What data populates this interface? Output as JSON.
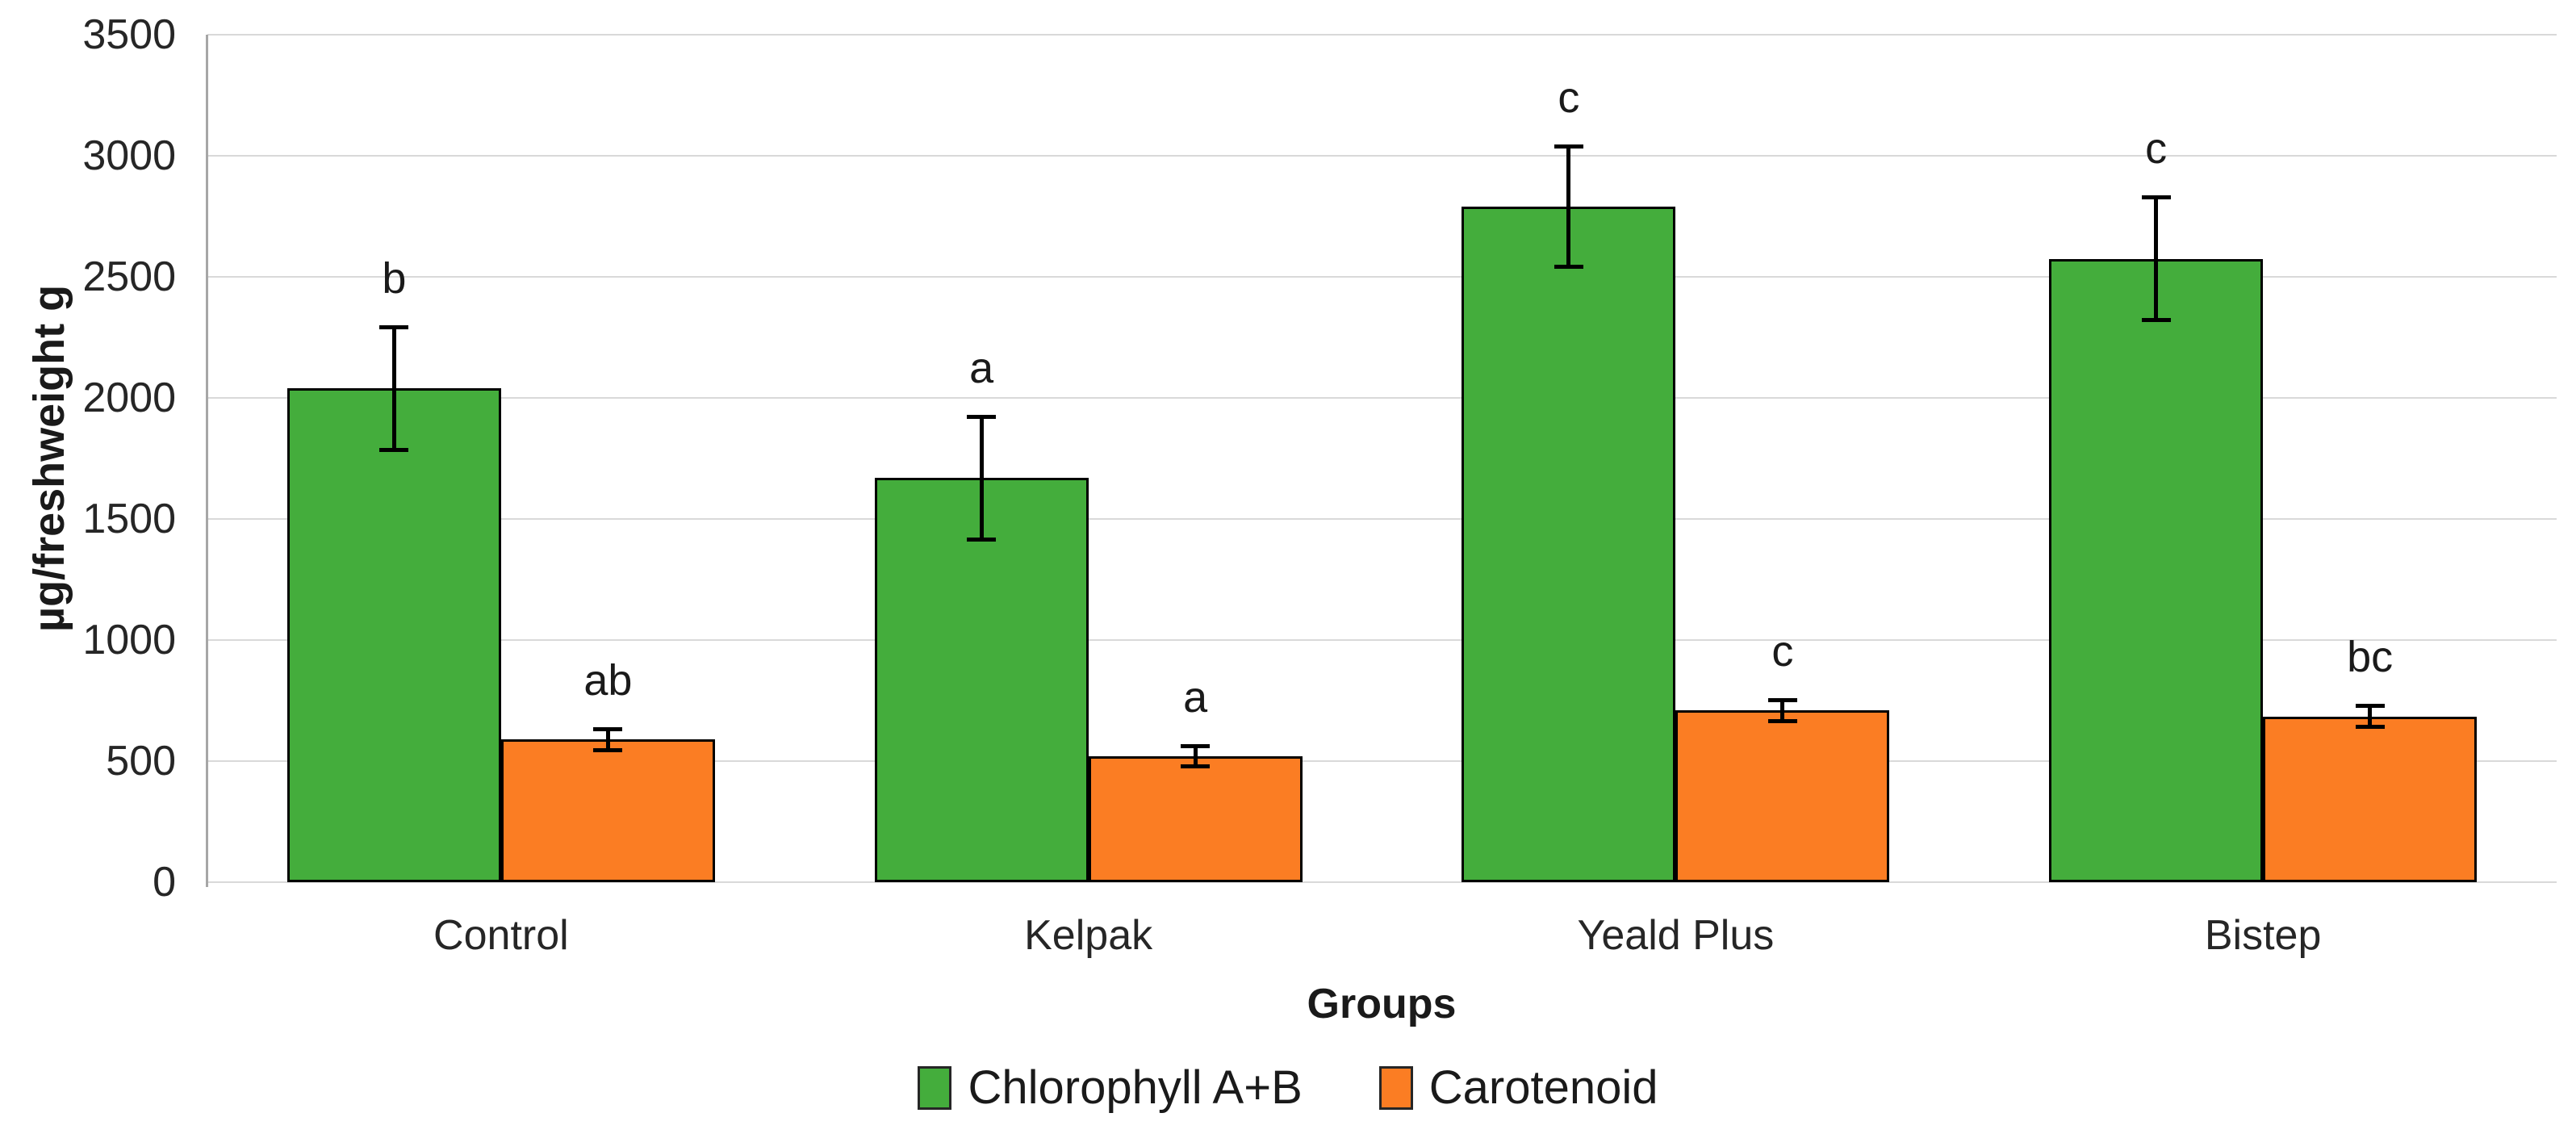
{
  "chart_data": {
    "type": "bar",
    "title": "",
    "xlabel": "Groups",
    "ylabel": "µg/freshweight g",
    "categories": [
      "Control",
      "Kelpak",
      "Yeald Plus",
      "Bistep"
    ],
    "series": [
      {
        "name": "Chlorophyll A+B",
        "color": "#44AD3C",
        "values": [
          2040,
          1670,
          2790,
          2575
        ],
        "errors": [
          255,
          255,
          250,
          255
        ],
        "sig_letters": [
          "b",
          "a",
          "c",
          "c"
        ]
      },
      {
        "name": "Carotenoid",
        "color": "#FB7D23",
        "values": [
          590,
          520,
          710,
          685
        ],
        "errors": [
          45,
          42,
          45,
          45
        ],
        "sig_letters": [
          "ab",
          "a",
          "c",
          "bc"
        ]
      }
    ],
    "ylim": [
      0,
      3500
    ],
    "ytick_step": 500,
    "yticks": [
      0,
      500,
      1000,
      1500,
      2000,
      2500,
      3000,
      3500
    ],
    "grid": "horizontal",
    "gridline_color": "#d9d9d9",
    "axis_line_color": "#a6a6a6",
    "bar_outline_color": "#000000",
    "error_bar_color": "#000000",
    "legend_position": "bottom",
    "legend_labels": [
      "Chlorophyll A+B",
      "Carotenoid"
    ]
  }
}
